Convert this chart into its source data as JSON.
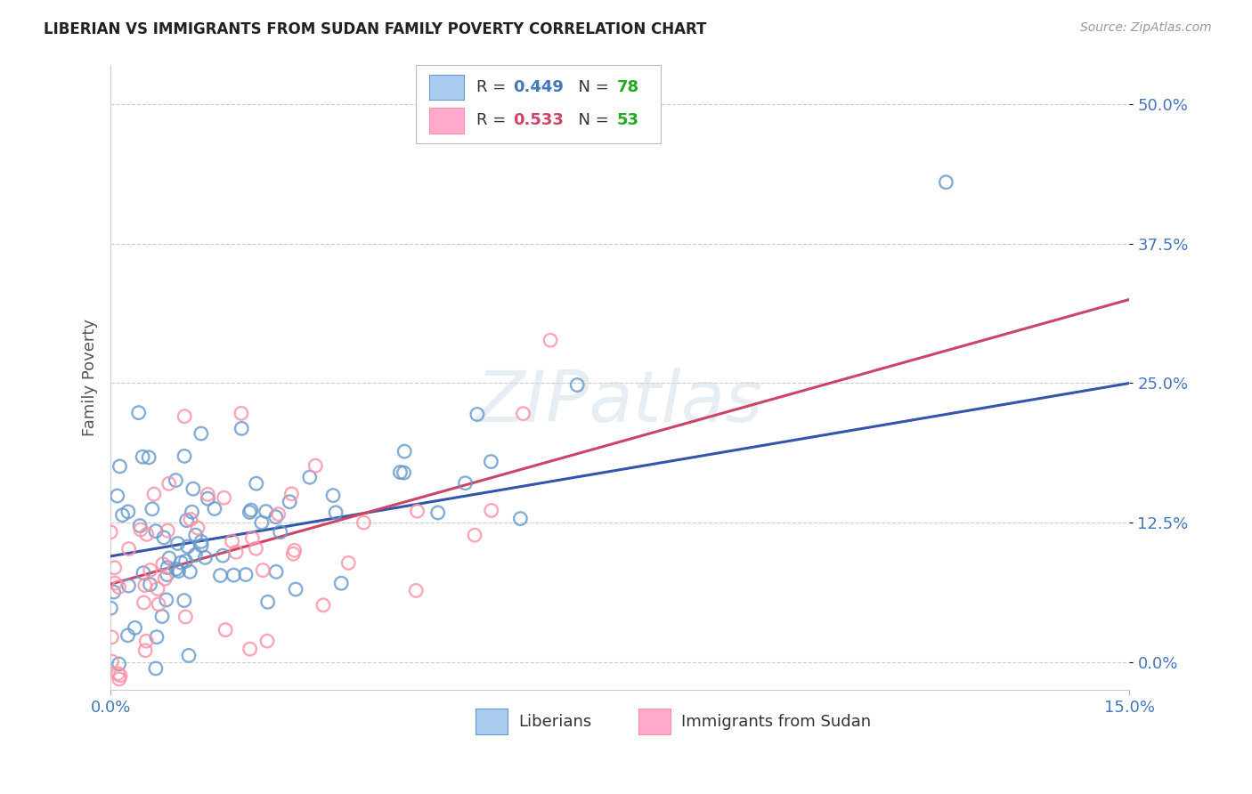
{
  "title": "LIBERIAN VS IMMIGRANTS FROM SUDAN FAMILY POVERTY CORRELATION CHART",
  "source": "Source: ZipAtlas.com",
  "ylabel_label": "Family Poverty",
  "ylabel_ticks": [
    "0.0%",
    "12.5%",
    "25.0%",
    "37.5%",
    "50.0%"
  ],
  "xlabel_ticks": [
    "0.0%",
    "15.0%"
  ],
  "xlim": [
    0.0,
    0.15
  ],
  "ylim": [
    -0.025,
    0.535
  ],
  "ytick_positions": [
    0.0,
    0.125,
    0.25,
    0.375,
    0.5
  ],
  "xtick_positions": [
    0.0,
    0.15
  ],
  "blue_scatter_edge": "#6699CC",
  "pink_scatter_edge": "#FF8FA3",
  "blue_line_color": "#3355AA",
  "pink_line_color": "#CC4466",
  "R_blue": 0.449,
  "N_blue": 78,
  "R_pink": 0.533,
  "N_pink": 53,
  "legend_label_blue": "Liberians",
  "legend_label_pink": "Immigrants from Sudan",
  "watermark_text": "ZIPatlas",
  "background_color": "#ffffff",
  "grid_color": "#cccccc",
  "title_color": "#222222",
  "source_color": "#999999",
  "axis_tick_color": "#4477BB",
  "ylabel_text_color": "#555555",
  "legend_R_color_blue": "#4477BB",
  "legend_R_color_pink": "#CC4466",
  "legend_N_color": "#22AA22",
  "blue_line_y0": 0.095,
  "blue_line_y1": 0.25,
  "pink_line_y0": 0.07,
  "pink_line_y1": 0.325
}
